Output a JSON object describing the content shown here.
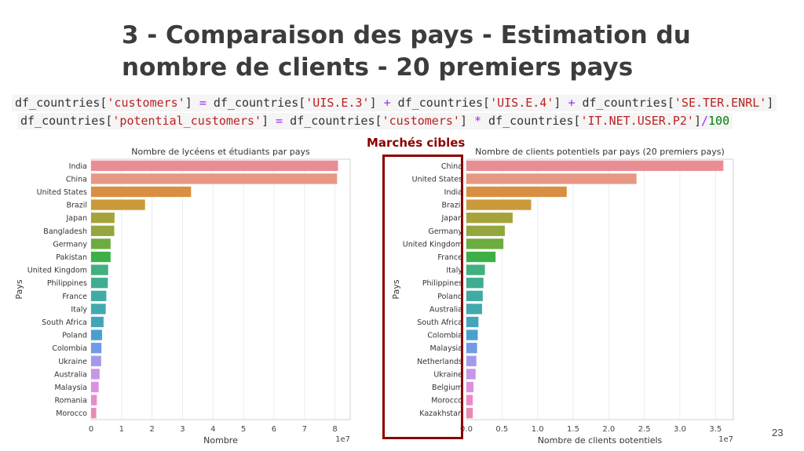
{
  "title": "3 - Comparaison des pays - Estimation du nombre de clients - 20 premiers pays",
  "code": {
    "line1": [
      {
        "t": "df_countries[",
        "c": ""
      },
      {
        "t": "'customers'",
        "c": "s"
      },
      {
        "t": "] ",
        "c": ""
      },
      {
        "t": "=",
        "c": "o"
      },
      {
        "t": " df_countries[",
        "c": ""
      },
      {
        "t": "'UIS.E.3'",
        "c": "s"
      },
      {
        "t": "] ",
        "c": ""
      },
      {
        "t": "+",
        "c": "o"
      },
      {
        "t": " df_countries[",
        "c": ""
      },
      {
        "t": "'UIS.E.4'",
        "c": "s"
      },
      {
        "t": "] ",
        "c": ""
      },
      {
        "t": "+",
        "c": "o"
      },
      {
        "t": " df_countries[",
        "c": ""
      },
      {
        "t": "'SE.TER.ENRL'",
        "c": "s"
      },
      {
        "t": "]",
        "c": ""
      }
    ],
    "line2": [
      {
        "t": "df_countries[",
        "c": ""
      },
      {
        "t": "'potential_customers'",
        "c": "s"
      },
      {
        "t": "] ",
        "c": ""
      },
      {
        "t": "=",
        "c": "o"
      },
      {
        "t": " df_countries[",
        "c": ""
      },
      {
        "t": "'customers'",
        "c": "s"
      },
      {
        "t": "] ",
        "c": ""
      },
      {
        "t": "*",
        "c": "o"
      },
      {
        "t": " df_countries[",
        "c": ""
      },
      {
        "t": "'IT.NET.USER.P2'",
        "c": "s"
      },
      {
        "t": "]",
        "c": ""
      },
      {
        "t": "/",
        "c": "o"
      },
      {
        "t": "100",
        "c": "n"
      }
    ]
  },
  "highlight_label": "Marchés cibles",
  "page_number": "23",
  "palette": [
    "#e98d95",
    "#e89784",
    "#d98f42",
    "#c99a3a",
    "#a6a33b",
    "#93a73e",
    "#6dac3f",
    "#3cb046",
    "#3fb07e",
    "#40ad93",
    "#40aba2",
    "#41a9ad",
    "#43a5bc",
    "#48a0d1",
    "#6f9ae6",
    "#a39aea",
    "#c796ea",
    "#df8fe1",
    "#e98ac9",
    "#ea88b4"
  ],
  "chart_data": [
    {
      "type": "bar",
      "orientation": "horizontal",
      "title": "Nombre de lycéens et étudiants par pays",
      "xlabel": "Nombre",
      "ylabel": "Pays",
      "offset_label": "1e7",
      "xlim": [
        0,
        8.5
      ],
      "xticks": [
        0,
        1,
        2,
        3,
        4,
        5,
        6,
        7,
        8
      ],
      "tick_labels": [
        "0",
        "1",
        "2",
        "3",
        "4",
        "5",
        "6",
        "7",
        "8"
      ],
      "categories": [
        "India",
        "China",
        "United States",
        "Brazil",
        "Japan",
        "Bangladesh",
        "Germany",
        "Pakistan",
        "United Kingdom",
        "Philippines",
        "France",
        "Italy",
        "South Africa",
        "Poland",
        "Colombia",
        "Ukraine",
        "Australia",
        "Malaysia",
        "Romania",
        "Morocco"
      ],
      "values": [
        8.1,
        8.07,
        3.28,
        1.77,
        0.77,
        0.76,
        0.64,
        0.64,
        0.56,
        0.55,
        0.5,
        0.48,
        0.41,
        0.36,
        0.34,
        0.33,
        0.28,
        0.25,
        0.19,
        0.17
      ]
    },
    {
      "type": "bar",
      "orientation": "horizontal",
      "title": "Nombre de clients potentiels par pays (20 premiers pays)",
      "xlabel": "Nombre de clients potentiels",
      "ylabel": "Pays",
      "offset_label": "1e7",
      "xlim": [
        0,
        3.75
      ],
      "xticks": [
        0,
        0.5,
        1.0,
        1.5,
        2.0,
        2.5,
        3.0,
        3.5
      ],
      "tick_labels": [
        "0.0",
        "0.5",
        "1.0",
        "1.5",
        "2.0",
        "2.5",
        "3.0",
        "3.5"
      ],
      "categories": [
        "China",
        "United States",
        "India",
        "Brazil",
        "Japan",
        "Germany",
        "United Kingdom",
        "France",
        "Italy",
        "Philippines",
        "Poland",
        "Australia",
        "South Africa",
        "Colombia",
        "Malaysia",
        "Netherlands",
        "Ukraine",
        "Belgium",
        "Morocco",
        "Kazakhstan"
      ],
      "values": [
        3.61,
        2.39,
        1.41,
        0.91,
        0.65,
        0.54,
        0.52,
        0.41,
        0.26,
        0.24,
        0.23,
        0.22,
        0.17,
        0.16,
        0.15,
        0.14,
        0.13,
        0.1,
        0.09,
        0.09
      ]
    }
  ]
}
